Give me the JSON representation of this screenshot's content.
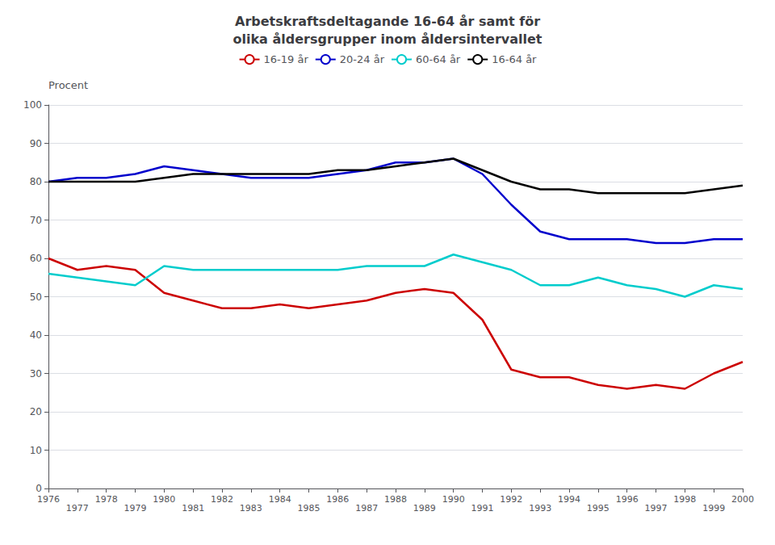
{
  "chart_data": {
    "type": "line",
    "title": "Arbetskraftsdeltagande 16-64 år samt för\nolika åldersgrupper inom åldersintervallet",
    "y_label": "Procent",
    "x": [
      1976,
      1977,
      1978,
      1979,
      1980,
      1981,
      1982,
      1983,
      1984,
      1985,
      1986,
      1987,
      1988,
      1989,
      1990,
      1991,
      1992,
      1993,
      1994,
      1995,
      1996,
      1997,
      1998,
      1999,
      2000
    ],
    "series": [
      {
        "name": "16-19 år",
        "color": "#cc0000",
        "values": [
          60,
          57,
          58,
          57,
          51,
          49,
          47,
          47,
          48,
          47,
          48,
          49,
          51,
          52,
          51,
          44,
          31,
          29,
          29,
          27,
          26,
          27,
          26,
          30,
          33
        ]
      },
      {
        "name": "20-24 år",
        "color": "#0000cc",
        "values": [
          80,
          81,
          81,
          82,
          84,
          83,
          82,
          81,
          81,
          81,
          82,
          83,
          85,
          85,
          86,
          82,
          74,
          67,
          65,
          65,
          65,
          64,
          64,
          65,
          65
        ]
      },
      {
        "name": "60-64 år",
        "color": "#00cccc",
        "values": [
          56,
          55,
          54,
          53,
          58,
          57,
          57,
          57,
          57,
          57,
          57,
          58,
          58,
          58,
          61,
          59,
          57,
          53,
          53,
          55,
          53,
          52,
          50,
          53,
          52
        ]
      },
      {
        "name": "16-64 år",
        "color": "#000000",
        "values": [
          80,
          80,
          80,
          80,
          81,
          82,
          82,
          82,
          82,
          82,
          83,
          83,
          84,
          85,
          86,
          83,
          80,
          78,
          78,
          77,
          77,
          77,
          77,
          78,
          79
        ]
      }
    ],
    "xlim": [
      1976,
      2000
    ],
    "xticks": [
      1976,
      1977,
      1978,
      1979,
      1980,
      1981,
      1982,
      1983,
      1984,
      1985,
      1986,
      1987,
      1988,
      1989,
      1990,
      1991,
      1992,
      1993,
      1994,
      1995,
      1996,
      1997,
      1998,
      1999,
      2000
    ],
    "ylim": [
      0,
      100
    ],
    "yticks": [
      0,
      10,
      20,
      30,
      40,
      50,
      60,
      70,
      80,
      90,
      100
    ],
    "grid": true,
    "legend": "top"
  }
}
